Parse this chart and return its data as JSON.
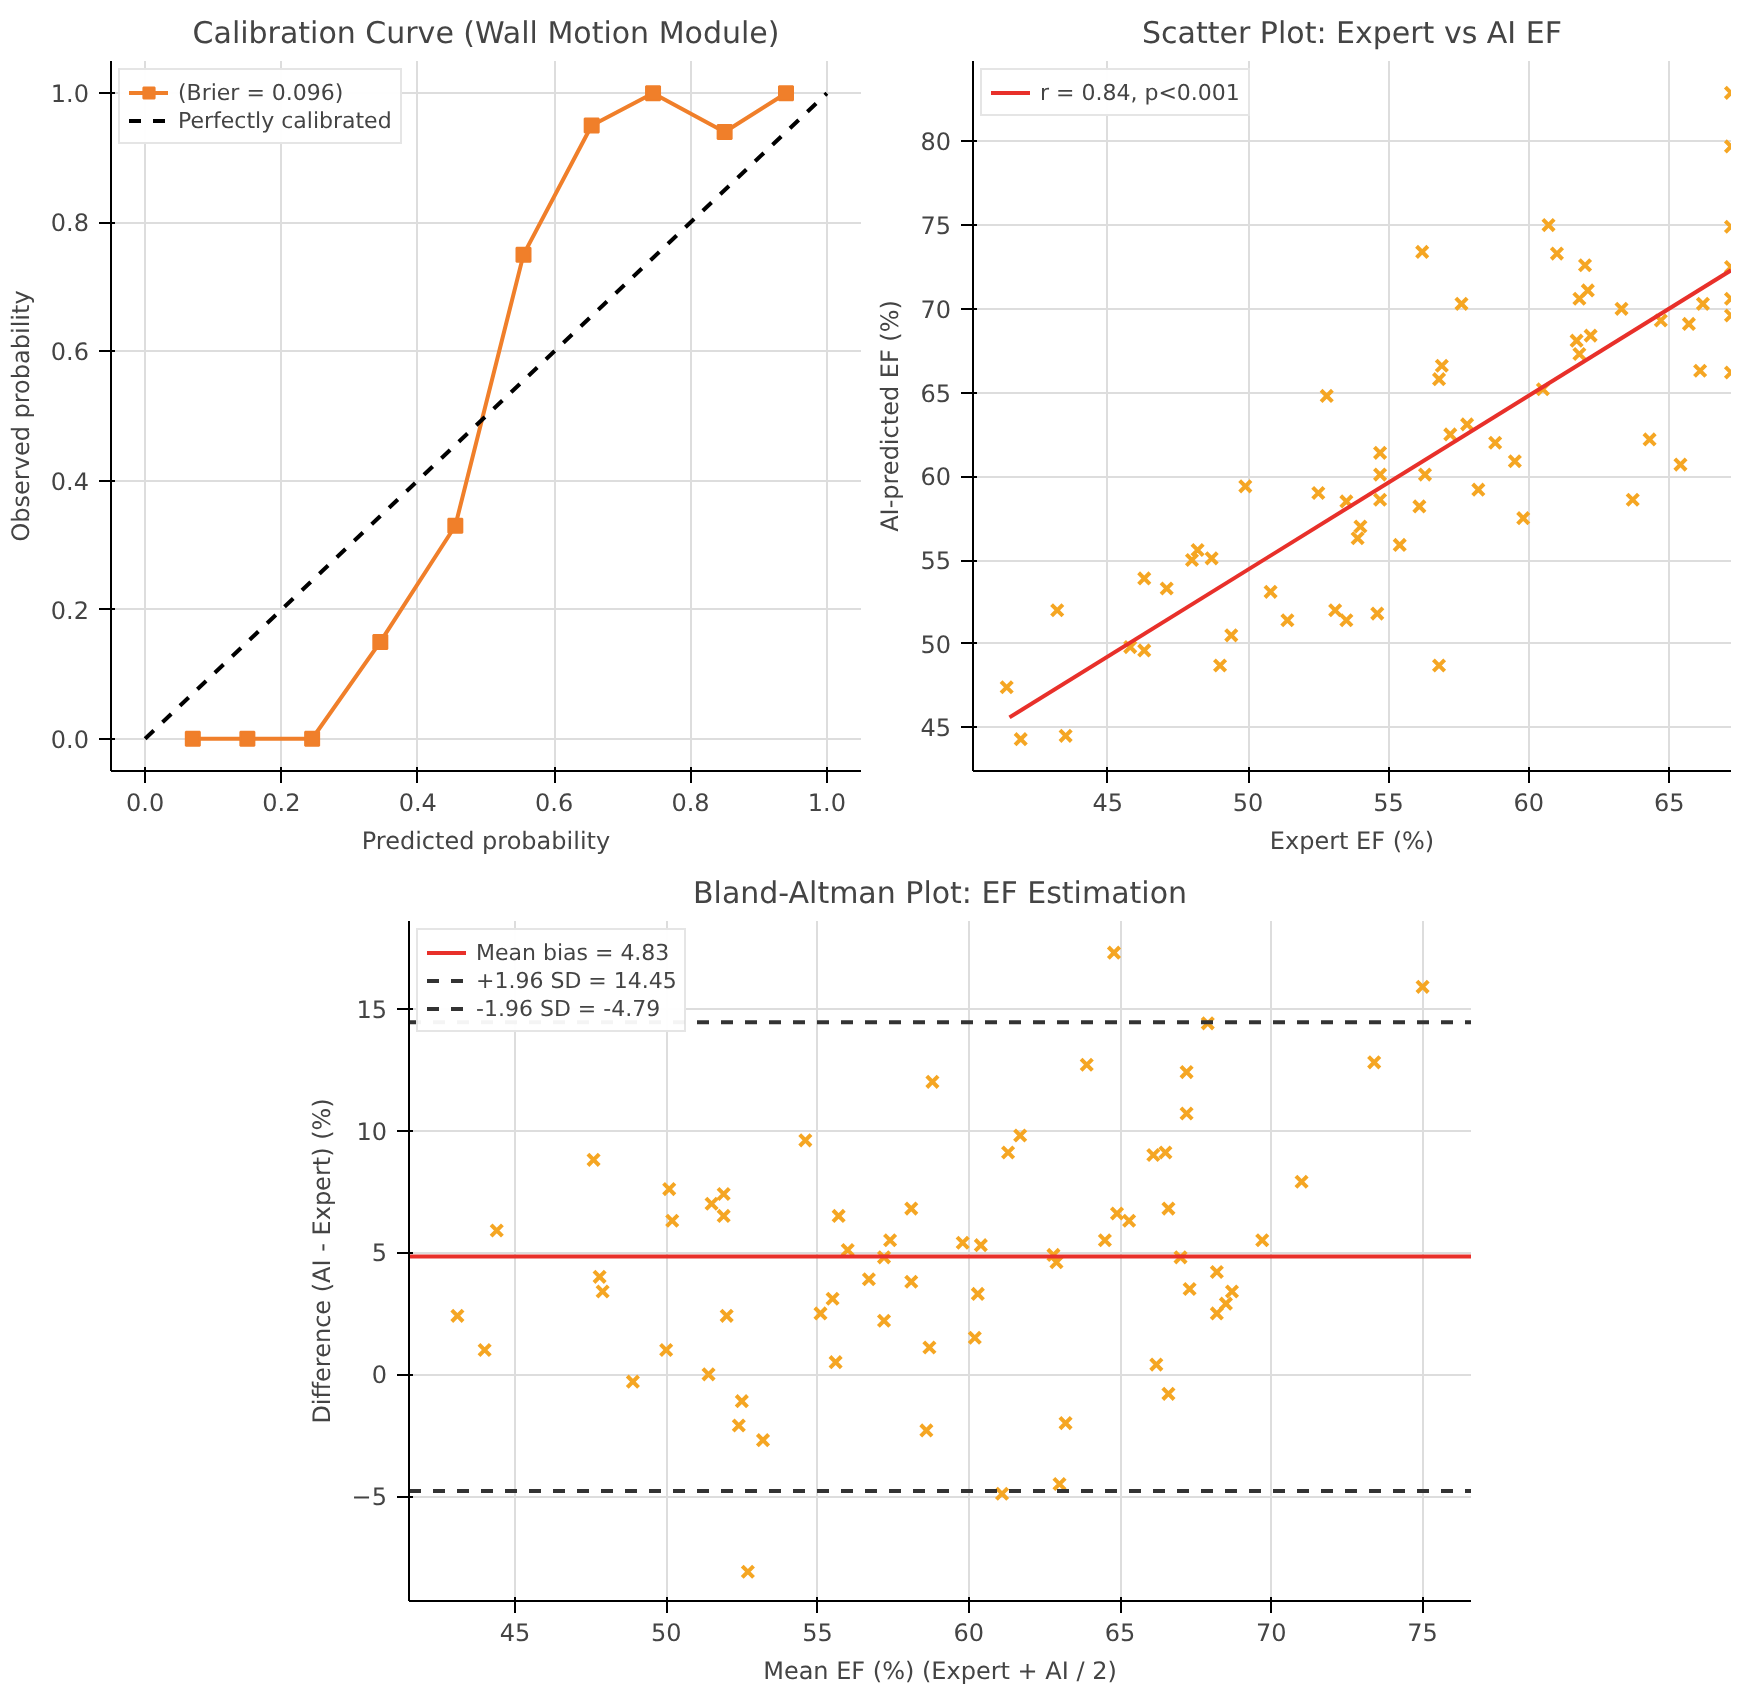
{
  "chart_data": [
    {
      "type": "line",
      "title": "Calibration Curve (Wall Motion Module)",
      "xlabel": "Predicted probability",
      "ylabel": "Observed probability",
      "series": [
        {
          "name": "(Brier = 0.096)",
          "color": "#f07f2a",
          "marker": "square",
          "line_style": "solid",
          "x": [
            0.07,
            0.15,
            0.245,
            0.345,
            0.455,
            0.555,
            0.655,
            0.745,
            0.85,
            0.94
          ],
          "values": [
            0,
            0,
            0,
            0.15,
            0.33,
            0.75,
            0.95,
            1.0,
            0.94,
            1.0
          ]
        },
        {
          "name": "Perfectly calibrated",
          "color": "#000000",
          "marker": "none",
          "line_style": "dashed",
          "x": [
            0,
            1
          ],
          "values": [
            0,
            1
          ]
        }
      ],
      "xlim": [
        -0.05,
        1.05
      ],
      "ylim": [
        -0.05,
        1.05
      ],
      "xticks": [
        {
          "value": 0,
          "label": "0.0"
        },
        {
          "value": 0.2,
          "label": "0.2"
        },
        {
          "value": 0.4,
          "label": "0.4"
        },
        {
          "value": 0.6,
          "label": "0.6"
        },
        {
          "value": 0.8,
          "label": "0.8"
        },
        {
          "value": 1,
          "label": "1.0"
        }
      ],
      "yticks": [
        {
          "value": 0,
          "label": "0.0"
        },
        {
          "value": 0.2,
          "label": "0.2"
        },
        {
          "value": 0.4,
          "label": "0.4"
        },
        {
          "value": 0.6,
          "label": "0.6"
        },
        {
          "value": 0.8,
          "label": "0.8"
        },
        {
          "value": 1,
          "label": "1.0"
        }
      ],
      "grid": true,
      "legend": "top left"
    },
    {
      "type": "scatter",
      "title": "Scatter Plot: Expert vs AI EF",
      "xlabel": "Expert EF (%)",
      "ylabel": "AI-predicted EF (%)",
      "marker": "cross",
      "series": [
        {
          "color": "#f5a623",
          "x": [
            41.4,
            41.9,
            43.2,
            43.5,
            45.8,
            46.3,
            46.3,
            47.1,
            48.0,
            48.2,
            48.7,
            49.0,
            49.4,
            49.9,
            50.8,
            51.4,
            52.5,
            52.8,
            53.1,
            53.5,
            53.5,
            53.9,
            54.0,
            54.6,
            54.7,
            54.7,
            54.7,
            55.4,
            56.1,
            56.2,
            56.3,
            56.8,
            56.9,
            56.8,
            57.2,
            57.6,
            57.8,
            58.2,
            58.8,
            59.5,
            59.8,
            60.5,
            60.7,
            61.0,
            61.7,
            61.8,
            61.8,
            62.0,
            62.1,
            62.2,
            63.3,
            63.7,
            64.3,
            64.7,
            65.4,
            65.7,
            66.1,
            66.2,
            67.2,
            67.2,
            67.2,
            67.2,
            67.2,
            67.2,
            67.2
          ],
          "values": [
            47.4,
            44.3,
            52.0,
            44.5,
            49.8,
            49.6,
            53.9,
            53.3,
            55.0,
            55.6,
            55.1,
            48.7,
            50.5,
            59.4,
            53.1,
            51.4,
            59.0,
            64.8,
            52.0,
            51.4,
            58.5,
            56.3,
            57.0,
            51.8,
            61.4,
            60.1,
            58.6,
            55.9,
            58.2,
            73.4,
            60.1,
            65.8,
            66.6,
            48.7,
            62.5,
            70.3,
            63.1,
            59.2,
            62.0,
            60.9,
            57.5,
            65.2,
            75.0,
            73.3,
            68.1,
            70.6,
            67.3,
            72.6,
            71.1,
            68.4,
            70.0,
            58.6,
            62.2,
            69.3,
            60.7,
            69.1,
            66.3,
            70.3,
            82.9,
            79.7,
            74.9,
            72.5,
            70.6,
            69.6,
            66.2
          ]
        },
        {
          "type": "line",
          "name": "r = 0.84, p<0.001",
          "color": "#e8302a",
          "line_style": "solid",
          "marker": "none",
          "x": [
            41.5,
            67.2
          ],
          "values": [
            45.6,
            72.3
          ]
        }
      ],
      "xlim": [
        40.2,
        67.2
      ],
      "ylim": [
        42.4,
        84.8
      ],
      "xticks": [
        45,
        50,
        55,
        60,
        65
      ],
      "yticks": [
        45,
        50,
        55,
        60,
        65,
        70,
        75,
        80
      ],
      "grid": true,
      "legend": "top left"
    },
    {
      "type": "scatter",
      "title": "Bland-Altman Plot: EF Estimation",
      "xlabel": "Mean EF (%) (Expert + AI / 2)",
      "ylabel": "Difference (AI - Expert) (%)",
      "marker": "cross",
      "series": [
        {
          "color": "#f5a623",
          "x": [
            43.1,
            44.0,
            44.4,
            47.6,
            47.8,
            47.9,
            48.9,
            50.0,
            50.1,
            50.2,
            51.4,
            51.5,
            51.9,
            51.9,
            52.0,
            52.5,
            52.4,
            53.2,
            52.7,
            54.6,
            55.1,
            55.5,
            55.7,
            55.6,
            56.0,
            56.7,
            57.2,
            57.2,
            57.4,
            58.1,
            58.1,
            58.6,
            58.7,
            58.8,
            59.8,
            60.2,
            60.3,
            60.4,
            61.1,
            61.3,
            61.7,
            62.8,
            62.9,
            63.0,
            63.2,
            63.9,
            64.5,
            64.8,
            64.9,
            65.3,
            66.2,
            66.1,
            66.5,
            66.6,
            66.6,
            67.0,
            67.2,
            67.2,
            67.3,
            67.9,
            68.2,
            68.2,
            68.5,
            68.7,
            69.7,
            71.0,
            73.4,
            75.0
          ],
          "values": [
            2.4,
            1.0,
            5.9,
            8.8,
            4.0,
            3.4,
            -0.3,
            1.0,
            7.6,
            6.3,
            0.0,
            7.0,
            7.4,
            6.5,
            2.4,
            -1.1,
            -2.1,
            -2.7,
            -8.1,
            9.6,
            2.5,
            3.1,
            6.5,
            0.5,
            5.1,
            3.9,
            4.8,
            2.2,
            5.5,
            6.8,
            3.8,
            -2.3,
            1.1,
            12.0,
            5.4,
            1.5,
            3.3,
            5.3,
            -4.9,
            9.1,
            9.8,
            4.9,
            4.6,
            -4.5,
            -2.0,
            12.7,
            5.5,
            17.3,
            6.6,
            6.3,
            0.4,
            9.0,
            9.1,
            6.8,
            -0.8,
            4.8,
            12.4,
            10.7,
            3.5,
            14.4,
            4.2,
            2.5,
            2.9,
            3.4,
            5.5,
            7.9,
            12.8,
            15.9
          ]
        }
      ],
      "ref_lines": [
        {
          "axis": "y",
          "value": 4.83,
          "label": "Mean bias = 4.83",
          "color": "#e8302a",
          "line_style": "solid"
        },
        {
          "axis": "y",
          "value": 14.45,
          "label": "+1.96 SD = 14.45",
          "color": "#333333",
          "line_style": "dashed"
        },
        {
          "axis": "y",
          "value": -4.79,
          "label": "-1.96 SD = -4.79",
          "color": "#333333",
          "line_style": "dashed"
        }
      ],
      "xlim": [
        41.5,
        76.6
      ],
      "ylim": [
        -9.3,
        18.6
      ],
      "xticks": [
        45,
        50,
        55,
        60,
        65,
        70,
        75
      ],
      "yticks": [
        {
          "value": -5,
          "label": "−5"
        },
        0,
        5,
        10,
        15
      ],
      "grid": true,
      "legend": "top left"
    }
  ]
}
